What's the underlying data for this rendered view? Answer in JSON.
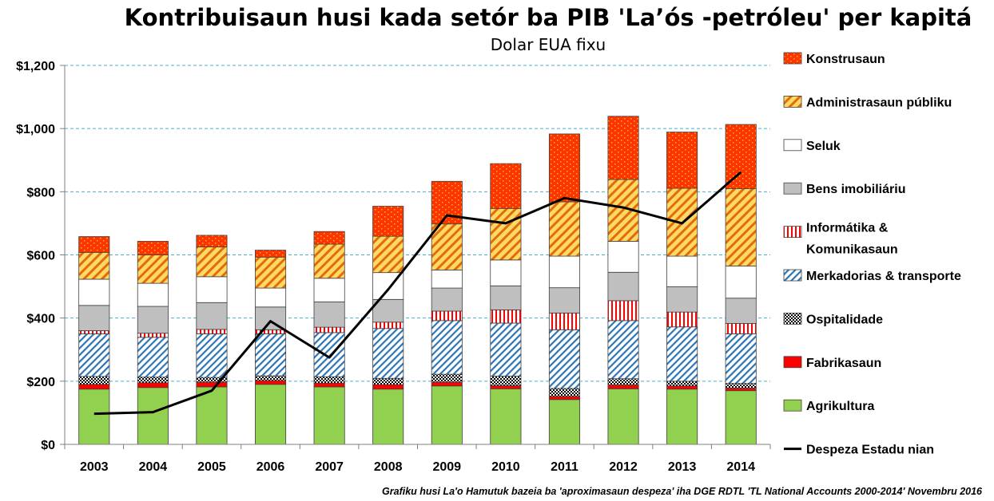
{
  "chart_data": {
    "type": "bar",
    "stacked": true,
    "title": "Kontribuisaun husi kada setór ba PIB 'La’ós -petróleu' per kapitá",
    "subtitle": "Dolar EUA fixu",
    "source": "Grafiku husi La'o Hamutuk bazeia ba 'aproximasaun despeza' iha DGE RDTL 'TL National Accounts 2000-2014' Novembru 2016",
    "categories": [
      "2003",
      "2004",
      "2005",
      "2006",
      "2007",
      "2008",
      "2009",
      "2010",
      "2011",
      "2012",
      "2013",
      "2014"
    ],
    "y_tick_labels": [
      "$0",
      "$200",
      "$400",
      "$600",
      "$800",
      "$1,000",
      "$1,200"
    ],
    "ylim": [
      0,
      1200
    ],
    "grid": true,
    "legend_position": "right",
    "series": [
      {
        "name": "Agrikultura",
        "pattern": "solid",
        "color": "#92d050",
        "values": [
          175,
          180,
          182,
          190,
          182,
          175,
          185,
          176,
          142,
          176,
          175,
          170
        ]
      },
      {
        "name": "Fabrikasaun",
        "pattern": "solid",
        "color": "#ff0000",
        "values": [
          15,
          15,
          15,
          12,
          12,
          14,
          12,
          10,
          10,
          12,
          10,
          8
        ]
      },
      {
        "name": "Ospitalidade",
        "pattern": "checker",
        "color": "#000000",
        "values": [
          25,
          18,
          15,
          15,
          20,
          20,
          25,
          30,
          25,
          20,
          15,
          15
        ]
      },
      {
        "name": "Merkadorias & transporte",
        "pattern": "diagonal-blue",
        "color": "#0070c0",
        "values": [
          135,
          126,
          138,
          133,
          140,
          158,
          170,
          168,
          186,
          184,
          172,
          157
        ]
      },
      {
        "name": "Informátika & Komunikasaun",
        "pattern": "vertical-red",
        "color": "#ff0000",
        "values": [
          10,
          13,
          14,
          13,
          17,
          20,
          30,
          42,
          53,
          63,
          47,
          33
        ]
      },
      {
        "name": "Bens imobiliáriu",
        "pattern": "solid",
        "color": "#bfbfbf",
        "values": [
          80,
          85,
          85,
          72,
          80,
          72,
          73,
          76,
          80,
          90,
          80,
          80
        ]
      },
      {
        "name": "Seluk",
        "pattern": "solid",
        "color": "#ffffff",
        "values": [
          83,
          73,
          82,
          60,
          75,
          85,
          57,
          82,
          100,
          98,
          97,
          102
        ]
      },
      {
        "name": "Administrasaun públiku",
        "pattern": "diagonal-gold",
        "color": "#ffc000",
        "values": [
          85,
          90,
          94,
          98,
          108,
          115,
          146,
          163,
          172,
          196,
          215,
          245
        ]
      },
      {
        "name": "Konstrusaun",
        "pattern": "brick",
        "color": "#ff0000",
        "values": [
          50,
          43,
          37,
          22,
          40,
          95,
          135,
          142,
          215,
          200,
          178,
          203
        ]
      }
    ],
    "line_series": {
      "name": "Despeza Estadu nian",
      "color": "#000000",
      "values": [
        97,
        102,
        170,
        390,
        275,
        490,
        725,
        700,
        780,
        750,
        700,
        862
      ]
    }
  }
}
